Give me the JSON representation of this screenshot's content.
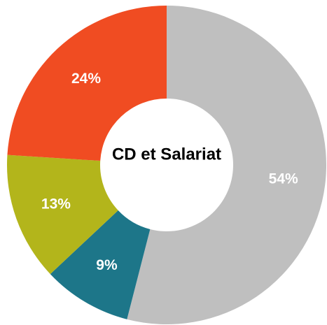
{
  "chart_data": {
    "type": "donut",
    "title": "CD et Salariat",
    "values": [
      54,
      9,
      13,
      24
    ],
    "value_labels": [
      "54%",
      "9%",
      "13%",
      "24%"
    ],
    "colors": [
      "#bfbfbf",
      "#1d7689",
      "#b3b51b",
      "#f04c22"
    ]
  }
}
